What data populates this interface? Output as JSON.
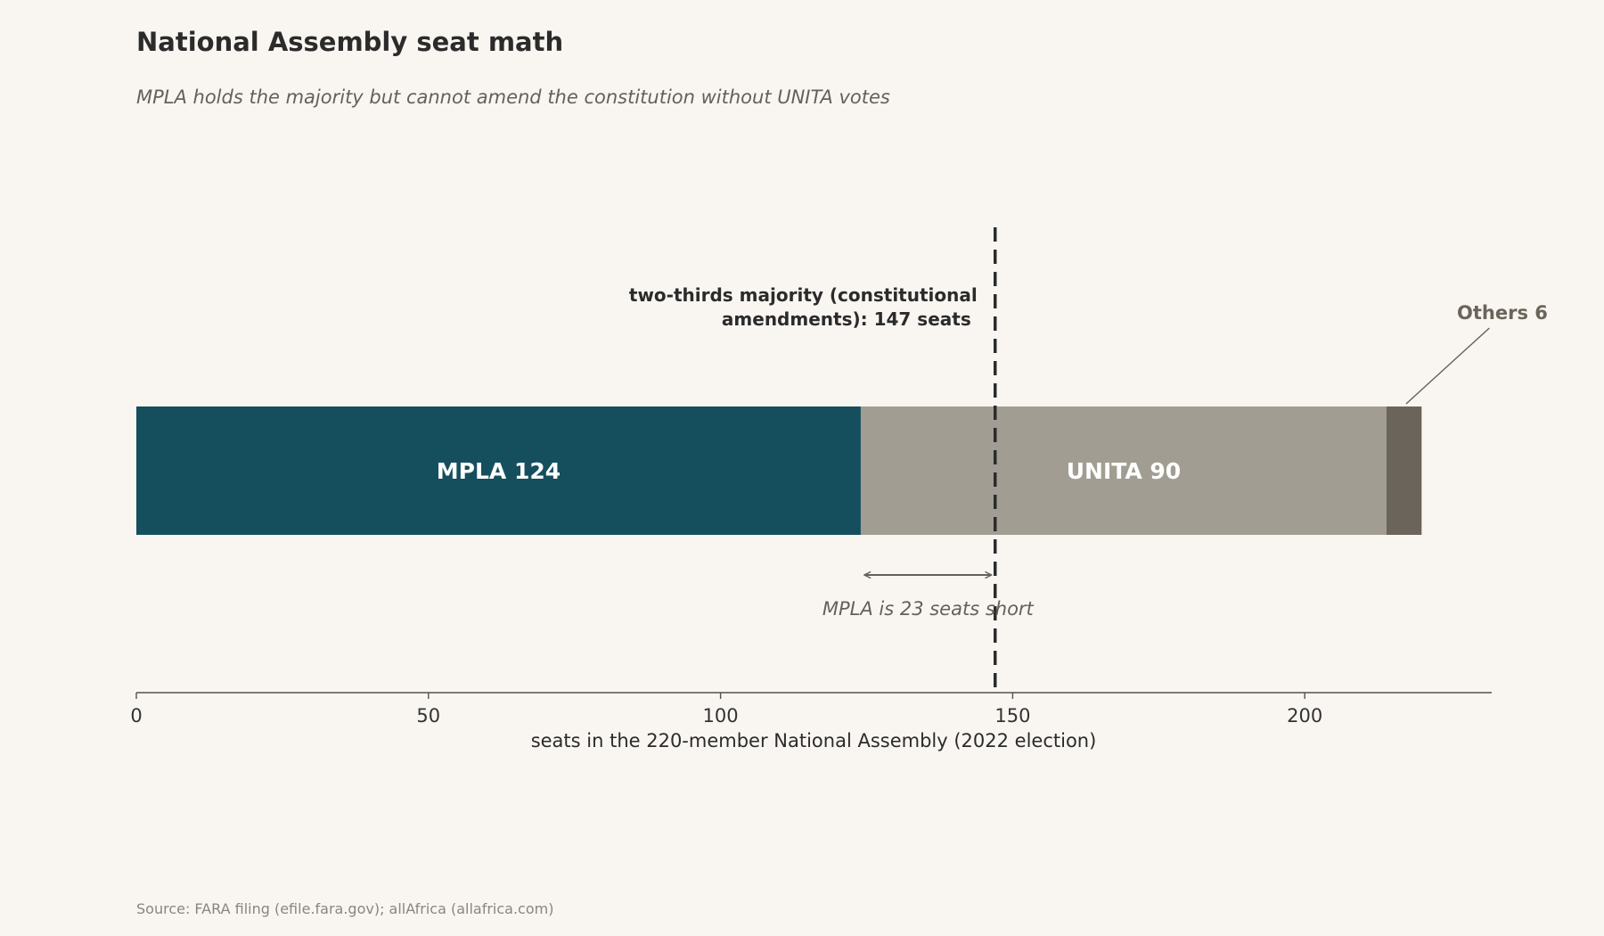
{
  "chart_data": {
    "type": "bar",
    "orientation": "horizontal-stacked",
    "title": "National Assembly seat math",
    "subtitle": "MPLA holds the majority but cannot amend the constitution without UNITA votes",
    "xlabel": "seats in the 220-member National Assembly (2022 election)",
    "xlim": [
      0,
      232
    ],
    "xticks": [
      0,
      50,
      100,
      150,
      200
    ],
    "grid": false,
    "series": [
      {
        "name": "MPLA",
        "value": 124,
        "label": "MPLA  124",
        "color": "#154f5e"
      },
      {
        "name": "UNITA",
        "value": 90,
        "label": "UNITA  90",
        "color": "#a19d92"
      },
      {
        "name": "Others",
        "value": 6,
        "label": "Others 6",
        "color": "#6b645a"
      }
    ],
    "threshold": {
      "value": 147,
      "label_lines": [
        "two-thirds majority (constitutional",
        "amendments): 147 seats"
      ]
    },
    "gap_annotation": {
      "from": 124,
      "to": 147,
      "label": "MPLA is 23 seats short"
    },
    "source": "Source: FARA filing (efile.fara.gov); allAfrica (allafrica.com)"
  }
}
